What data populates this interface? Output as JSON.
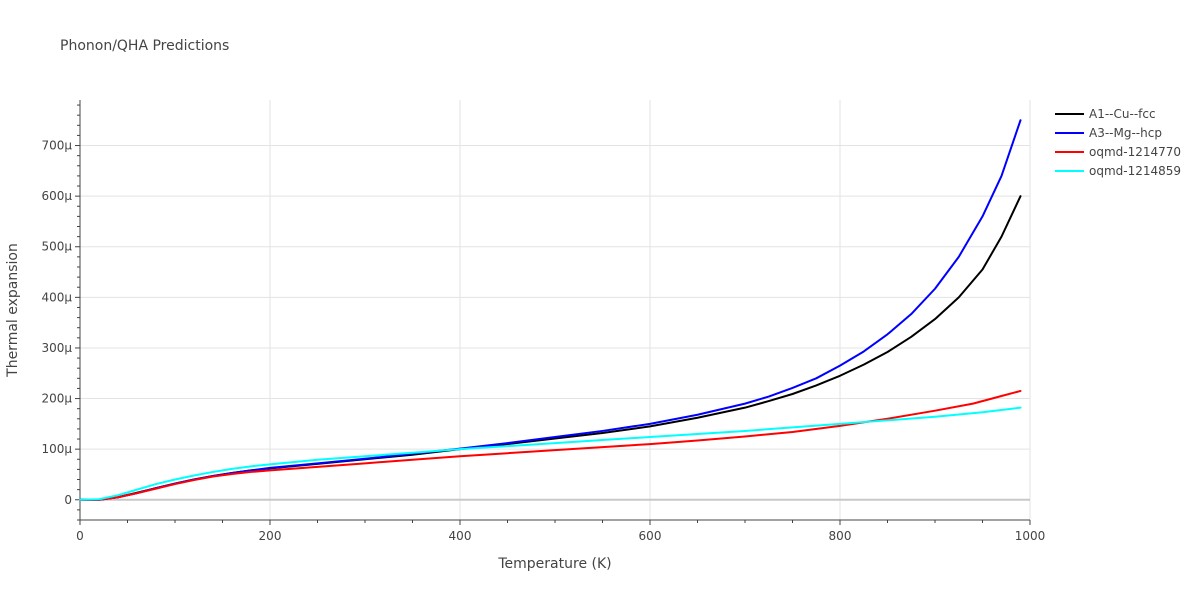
{
  "chart_data": {
    "type": "line",
    "title": "Phonon/QHA Predictions",
    "xlabel": "Temperature (K)",
    "ylabel": "Thermal expansion",
    "xlim": [
      0,
      1000
    ],
    "ylim": [
      -40,
      790
    ],
    "grid": true,
    "legend_position": "top-right",
    "x_ticks": [
      {
        "value": 0,
        "label": "0"
      },
      {
        "value": 200,
        "label": "200"
      },
      {
        "value": 400,
        "label": "400"
      },
      {
        "value": 600,
        "label": "600"
      },
      {
        "value": 800,
        "label": "800"
      },
      {
        "value": 1000,
        "label": "1000"
      }
    ],
    "y_ticks": [
      {
        "value": 0,
        "label": "0"
      },
      {
        "value": 100,
        "label": "100μ"
      },
      {
        "value": 200,
        "label": "200μ"
      },
      {
        "value": 300,
        "label": "300μ"
      },
      {
        "value": 400,
        "label": "400μ"
      },
      {
        "value": 500,
        "label": "500μ"
      },
      {
        "value": 600,
        "label": "600μ"
      },
      {
        "value": 700,
        "label": "700μ"
      }
    ],
    "series": [
      {
        "name": "A1--Cu--fcc",
        "color": "#000000",
        "x": [
          0,
          20,
          40,
          60,
          80,
          100,
          120,
          140,
          160,
          180,
          200,
          250,
          300,
          350,
          400,
          450,
          500,
          550,
          600,
          650,
          700,
          725,
          750,
          775,
          800,
          825,
          850,
          875,
          900,
          925,
          950,
          970,
          990
        ],
        "y": [
          0,
          0,
          5,
          14,
          23,
          32,
          40,
          47,
          53,
          58,
          62,
          71,
          80,
          89,
          100,
          110,
          121,
          132,
          145,
          162,
          182,
          195,
          209,
          226,
          245,
          267,
          292,
          322,
          357,
          400,
          455,
          520,
          600
        ]
      },
      {
        "name": "A3--Mg--hcp",
        "color": "#0000ff",
        "x": [
          0,
          20,
          40,
          60,
          80,
          100,
          120,
          140,
          160,
          180,
          200,
          250,
          300,
          350,
          400,
          450,
          500,
          550,
          600,
          650,
          700,
          725,
          750,
          775,
          800,
          825,
          850,
          875,
          900,
          925,
          950,
          970,
          990
        ],
        "y": [
          0,
          0,
          5,
          13,
          23,
          32,
          40,
          47,
          53,
          58,
          63,
          72,
          81,
          91,
          101,
          112,
          124,
          136,
          150,
          168,
          190,
          204,
          221,
          240,
          265,
          293,
          327,
          367,
          417,
          480,
          560,
          640,
          750
        ]
      },
      {
        "name": "oqmd-1214770",
        "color": "#ff0000",
        "x": [
          0,
          20,
          40,
          60,
          80,
          100,
          120,
          140,
          160,
          180,
          200,
          250,
          300,
          350,
          400,
          450,
          500,
          550,
          600,
          650,
          700,
          750,
          800,
          850,
          900,
          940,
          970,
          990
        ],
        "y": [
          0,
          0,
          5,
          13,
          22,
          31,
          39,
          46,
          51,
          55,
          58,
          65,
          72,
          79,
          86,
          92,
          98,
          104,
          110,
          117,
          125,
          134,
          146,
          160,
          176,
          190,
          205,
          215
        ]
      },
      {
        "name": "oqmd-1214859",
        "color": "#00ffff",
        "x": [
          0,
          20,
          40,
          60,
          80,
          100,
          120,
          140,
          160,
          180,
          200,
          250,
          300,
          350,
          400,
          450,
          500,
          550,
          600,
          650,
          700,
          750,
          800,
          850,
          900,
          950,
          990
        ],
        "y": [
          0,
          1,
          9,
          20,
          31,
          40,
          48,
          55,
          61,
          66,
          70,
          79,
          86,
          93,
          100,
          106,
          112,
          118,
          124,
          130,
          136,
          143,
          150,
          157,
          164,
          173,
          182
        ]
      }
    ]
  }
}
